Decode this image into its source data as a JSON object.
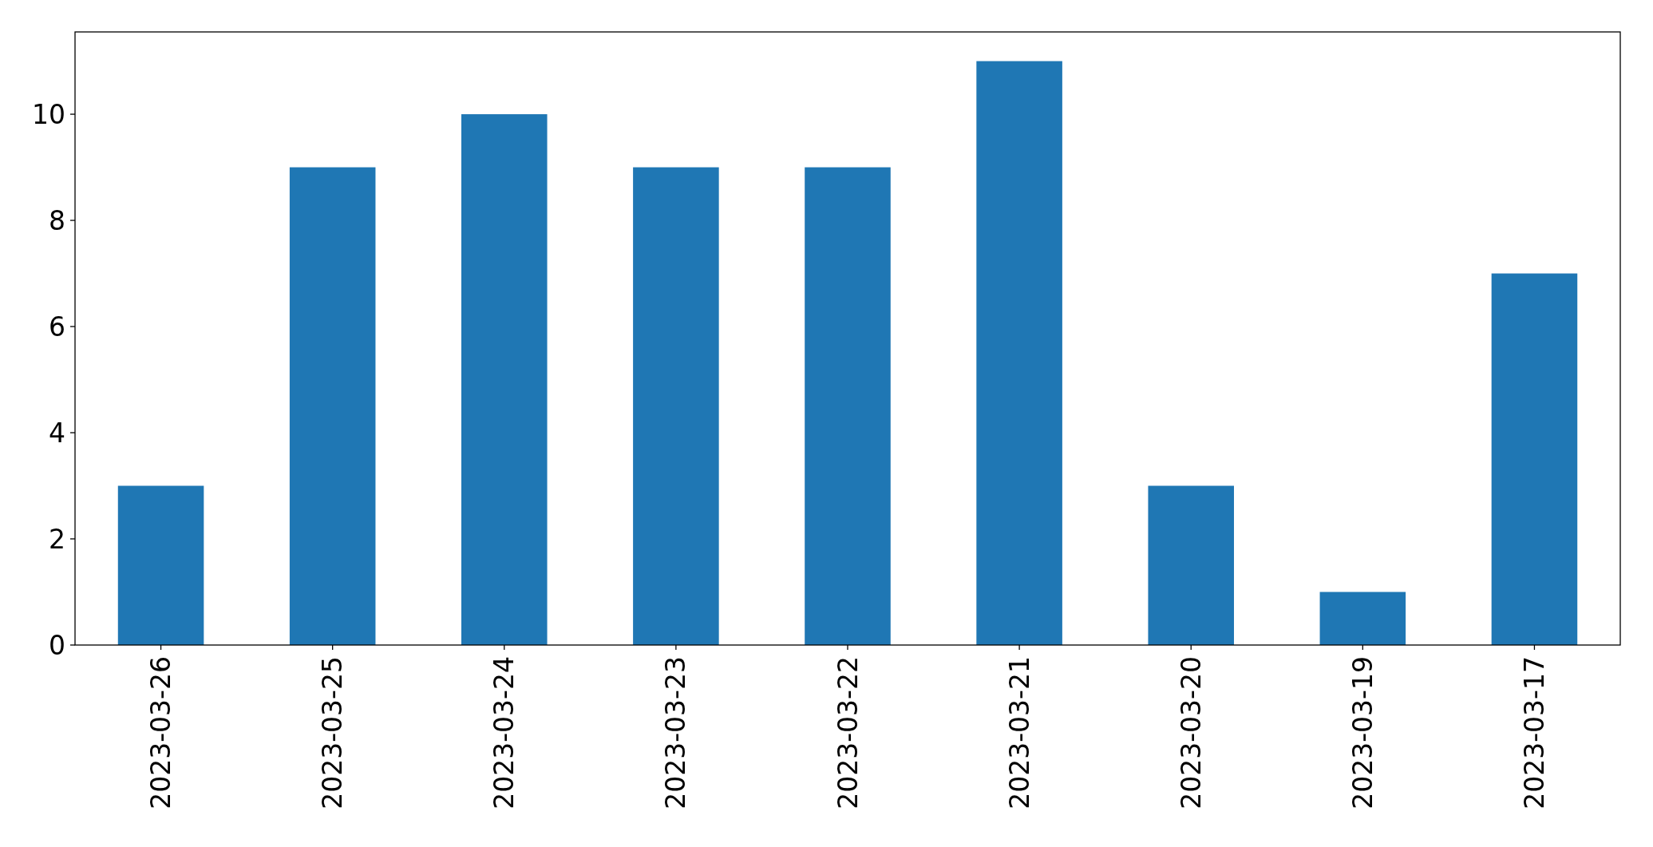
{
  "chart_data": {
    "type": "bar",
    "categories": [
      "2023-03-26",
      "2023-03-25",
      "2023-03-24",
      "2023-03-23",
      "2023-03-22",
      "2023-03-21",
      "2023-03-20",
      "2023-03-19",
      "2023-03-17"
    ],
    "values": [
      3,
      9,
      10,
      9,
      9,
      11,
      3,
      1,
      7
    ],
    "color": "#1f77b4",
    "ylim": [
      0,
      11.55
    ],
    "yticks": [
      0,
      2,
      4,
      6,
      8,
      10
    ],
    "grid": false
  }
}
